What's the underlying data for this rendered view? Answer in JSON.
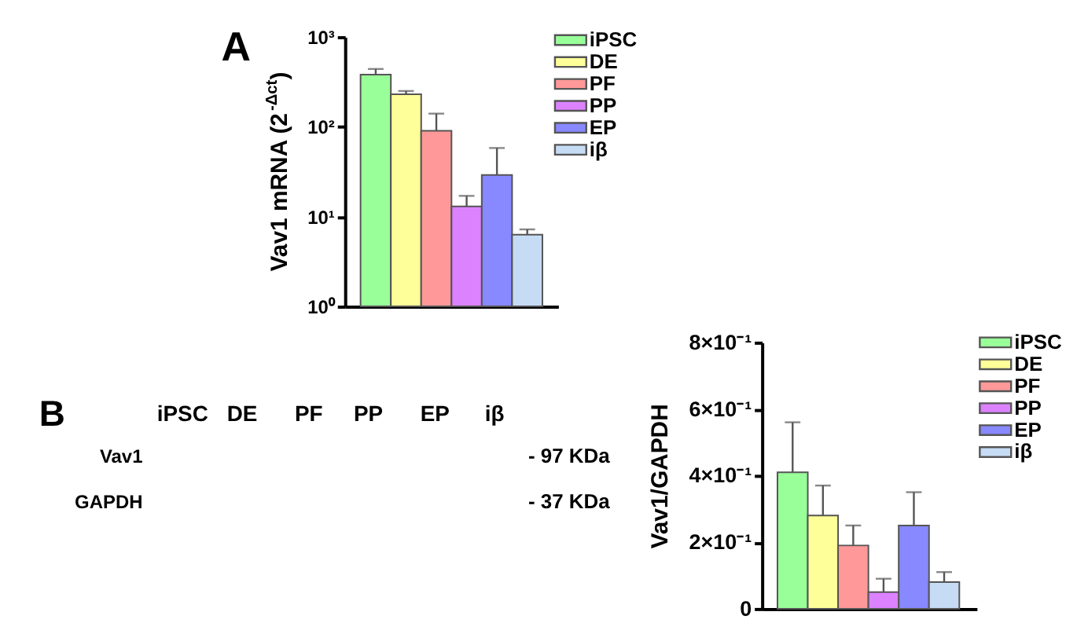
{
  "chart_data": [
    {
      "type": "bar",
      "annotations": [
        "A"
      ],
      "ylabel": "Vav1 mRNA (2$^{-Δct}$)",
      "categories": [
        null
      ],
      "series": [
        {
          "name": "iPSC",
          "color": "#99ff99",
          "values": [
            380
          ],
          "errors": [
            [
              380,
              440
            ]
          ]
        },
        {
          "name": "DE",
          "color": "#ffff99",
          "values": [
            230
          ],
          "errors": [
            [
              230,
              250
            ]
          ]
        },
        {
          "name": "PF",
          "color": "#ff9999",
          "values": [
            90
          ],
          "errors": [
            [
              90,
              140
            ]
          ]
        },
        {
          "name": "PP",
          "color": "#dc82ff",
          "values": [
            13
          ],
          "errors": [
            [
              13,
              17
            ]
          ]
        },
        {
          "name": "EP",
          "color": "#8888ff",
          "values": [
            29
          ],
          "errors": [
            [
              29,
              58
            ]
          ]
        },
        {
          "name": "iβ",
          "color": "#c6dcf5",
          "values": [
            6.3
          ],
          "errors": [
            [
              6.3,
              7.2
            ]
          ]
        }
      ],
      "log": true,
      "ylim": [
        1,
        1000
      ],
      "yticks": [
        {
          "value": 1,
          "label": "10⁰"
        },
        {
          "value": 10,
          "label": "10¹"
        },
        {
          "value": 100,
          "label": "10²"
        },
        {
          "value": 1000,
          "label": "10³"
        }
      ],
      "legend": "right",
      "tick_labels": "y"
    },
    {
      "type": "other",
      "annotations": [
        "B"
      ],
      "categories": [
        "iPSC",
        "DE",
        "PF",
        "PP",
        "EP",
        "iβ"
      ],
      "y_categories": [
        "Vav1",
        "GAPDH"
      ],
      "y2_categories": [
        "- 97 KDa",
        "- 37 KDa"
      ]
    },
    {
      "type": "bar",
      "ylabel": "Vav1/GAPDH",
      "categories": [
        null
      ],
      "series": [
        {
          "name": "iPSC",
          "color": "#99ff99",
          "values": [
            0.41
          ],
          "errors": [
            [
              0.41,
              0.56
            ]
          ]
        },
        {
          "name": "DE",
          "color": "#ffff99",
          "values": [
            0.28
          ],
          "errors": [
            [
              0.28,
              0.37
            ]
          ]
        },
        {
          "name": "PF",
          "color": "#ff9999",
          "values": [
            0.19
          ],
          "errors": [
            [
              0.19,
              0.25
            ]
          ]
        },
        {
          "name": "PP",
          "color": "#dc82ff",
          "values": [
            0.05
          ],
          "errors": [
            [
              0.05,
              0.09
            ]
          ]
        },
        {
          "name": "EP",
          "color": "#8888ff",
          "values": [
            0.25
          ],
          "errors": [
            [
              0.25,
              0.35
            ]
          ]
        },
        {
          "name": "iβ",
          "color": "#c6dcf5",
          "values": [
            0.08
          ],
          "errors": [
            [
              0.08,
              0.11
            ]
          ]
        }
      ],
      "ylim": [
        0,
        0.8
      ],
      "yticks": [
        {
          "value": 0,
          "label": "0"
        },
        {
          "value": 0.2,
          "label": "2×10⁻¹"
        },
        {
          "value": 0.4,
          "label": "4×10⁻¹"
        },
        {
          "value": 0.6,
          "label": "6×10⁻¹"
        },
        {
          "value": 0.8,
          "label": "8×10⁻¹"
        }
      ],
      "legend": "right",
      "tick_labels": "y"
    }
  ]
}
